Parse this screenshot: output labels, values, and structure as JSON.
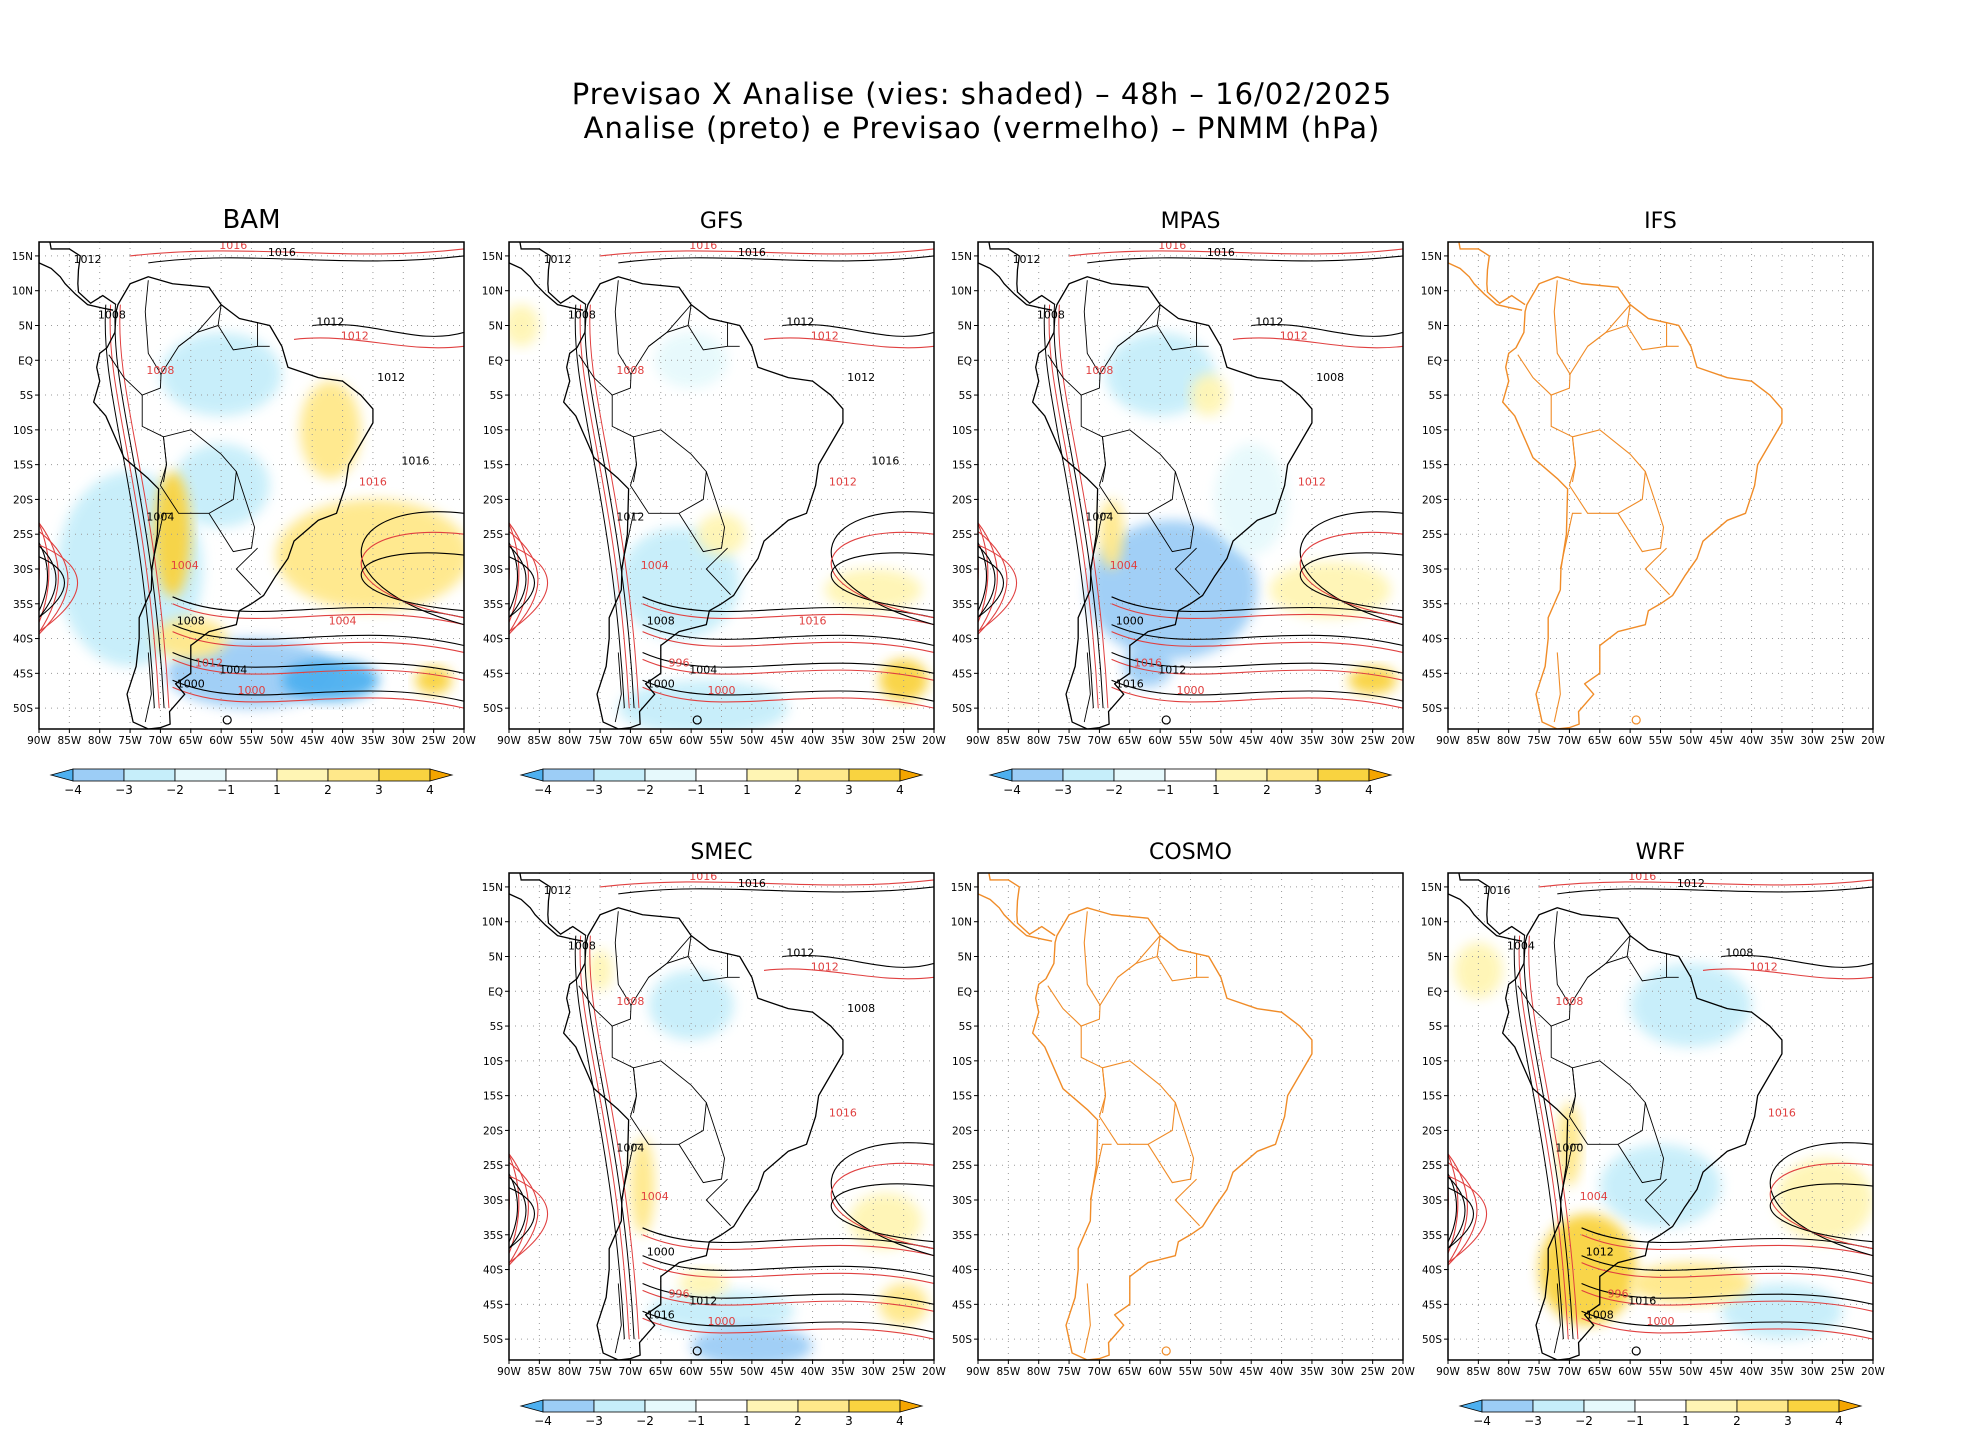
{
  "title": {
    "line1": "Previsao X Analise (vies: shaded) – 48h – 16/02/2025",
    "line2": "Analise (preto) e Previsao (vermelho) – PNMM (hPa)"
  },
  "colors": {
    "neg4": "#4db0f0",
    "neg3": "#9ccdf6",
    "neg2": "#c6eefa",
    "neg1": "#e6f9fc",
    "zero": "#ffffff",
    "pos1": "#fff5b4",
    "pos2": "#ffe88a",
    "pos3": "#f9d340",
    "pos4": "#f5a500",
    "analysis_contour": "#000000",
    "forecast_contour": "#e04040",
    "coast_outline": "#f08c28",
    "grid": "#9a9a9a"
  },
  "chart_data": {
    "type": "contour-map",
    "x_ticks": [
      "90W",
      "85W",
      "80W",
      "75W",
      "70W",
      "65W",
      "60W",
      "55W",
      "50W",
      "45W",
      "40W",
      "35W",
      "30W",
      "25W",
      "20W"
    ],
    "y_ticks": [
      "15N",
      "10N",
      "5N",
      "EQ",
      "5S",
      "10S",
      "15S",
      "20S",
      "25S",
      "30S",
      "35S",
      "40S",
      "45S",
      "50S"
    ],
    "lon_range": [
      -90,
      -20
    ],
    "lat_range": [
      -53,
      17
    ],
    "colorbar": {
      "labels": [
        "−4",
        "−3",
        "−2",
        "−1",
        "1",
        "2",
        "3",
        "4"
      ],
      "classes": [
        "neg4",
        "neg3",
        "neg2",
        "neg1",
        "zero",
        "pos1",
        "pos2",
        "pos3",
        "pos4"
      ]
    },
    "panels": [
      {
        "id": "bam",
        "name": "BAM",
        "has_data": true,
        "colorbar": true,
        "blobs": [
          {
            "lon": -55,
            "lat": -45,
            "rx": 14,
            "ry": 5,
            "v": -3
          },
          {
            "lon": -75,
            "lat": -30,
            "rx": 12,
            "ry": 14,
            "v": -2
          },
          {
            "lon": -42,
            "lat": -46,
            "rx": 8,
            "ry": 3,
            "v": -4
          },
          {
            "lon": -60,
            "lat": -2,
            "rx": 10,
            "ry": 6,
            "v": -2
          },
          {
            "lon": -60,
            "lat": -18,
            "rx": 8,
            "ry": 6,
            "v": -2
          },
          {
            "lon": -35,
            "lat": -28,
            "rx": 16,
            "ry": 8,
            "v": 2
          },
          {
            "lon": -68,
            "lat": -25,
            "rx": 3,
            "ry": 9,
            "v": 3
          },
          {
            "lon": -42,
            "lat": -10,
            "rx": 5,
            "ry": 7,
            "v": 2
          },
          {
            "lon": -65,
            "lat": -40,
            "rx": 6,
            "ry": 3,
            "v": 2
          },
          {
            "lon": -25,
            "lat": -46,
            "rx": 3,
            "ry": 2,
            "v": 3
          }
        ],
        "labels_black": [
          "1012",
          "1016",
          "1012",
          "1008",
          "1004",
          "1008",
          "1004",
          "1000",
          "1012",
          "1016"
        ],
        "labels_red": [
          "1016",
          "1012",
          "1008",
          "1004",
          "1000",
          "1012",
          "1016",
          "1004"
        ]
      },
      {
        "id": "gfs",
        "name": "GFS",
        "has_data": true,
        "colorbar": true,
        "blobs": [
          {
            "lon": -60,
            "lat": 0,
            "rx": 6,
            "ry": 4,
            "v": -1
          },
          {
            "lon": -62,
            "lat": -32,
            "rx": 10,
            "ry": 8,
            "v": -2
          },
          {
            "lon": -58,
            "lat": -50,
            "rx": 14,
            "ry": 4,
            "v": -2
          },
          {
            "lon": -88,
            "lat": 5,
            "rx": 3,
            "ry": 3,
            "v": 1
          },
          {
            "lon": -25,
            "lat": -46,
            "rx": 4,
            "ry": 3,
            "v": 3
          },
          {
            "lon": -30,
            "lat": -33,
            "rx": 8,
            "ry": 3,
            "v": 1
          },
          {
            "lon": -55,
            "lat": -25,
            "rx": 4,
            "ry": 3,
            "v": 1
          }
        ],
        "labels_black": [
          "1012",
          "1016",
          "1012",
          "1008",
          "1012",
          "1008",
          "1004",
          "1000",
          "1012",
          "1016"
        ],
        "labels_red": [
          "1016",
          "1012",
          "1008",
          "1004",
          "1000",
          "996",
          "1012",
          "1016"
        ]
      },
      {
        "id": "mpas",
        "name": "MPAS",
        "has_data": true,
        "colorbar": true,
        "blobs": [
          {
            "lon": -58,
            "lat": -33,
            "rx": 14,
            "ry": 10,
            "v": -3
          },
          {
            "lon": -60,
            "lat": -2,
            "rx": 9,
            "ry": 6,
            "v": -2
          },
          {
            "lon": -62,
            "lat": -44,
            "rx": 4,
            "ry": 3,
            "v": -3
          },
          {
            "lon": -45,
            "lat": -20,
            "rx": 6,
            "ry": 8,
            "v": -1
          },
          {
            "lon": -32,
            "lat": -33,
            "rx": 10,
            "ry": 4,
            "v": 1
          },
          {
            "lon": -25,
            "lat": -46,
            "rx": 4,
            "ry": 2,
            "v": 3
          },
          {
            "lon": -52,
            "lat": -5,
            "rx": 3,
            "ry": 3,
            "v": 1
          },
          {
            "lon": -68,
            "lat": -25,
            "rx": 2,
            "ry": 5,
            "v": 2
          }
        ],
        "labels_black": [
          "1012",
          "1016",
          "1012",
          "1008",
          "1004",
          "1000",
          "1012",
          "1016",
          "1008"
        ],
        "labels_red": [
          "1016",
          "1012",
          "1008",
          "1004",
          "1000",
          "1016",
          "1012"
        ]
      },
      {
        "id": "ifs",
        "name": "IFS",
        "has_data": false,
        "colorbar": false,
        "blobs": [],
        "labels_black": [],
        "labels_red": []
      },
      {
        "id": "smec",
        "name": "SMEC",
        "has_data": true,
        "colorbar": true,
        "blobs": [
          {
            "lon": -60,
            "lat": -2,
            "rx": 7,
            "ry": 5,
            "v": -2
          },
          {
            "lon": -55,
            "lat": -46,
            "rx": 12,
            "ry": 3,
            "v": -2
          },
          {
            "lon": -50,
            "lat": -51,
            "rx": 10,
            "ry": 3,
            "v": -3
          },
          {
            "lon": -68,
            "lat": -28,
            "rx": 2,
            "ry": 7,
            "v": 2
          },
          {
            "lon": -25,
            "lat": -45,
            "rx": 4,
            "ry": 3,
            "v": 2
          },
          {
            "lon": -28,
            "lat": -33,
            "rx": 6,
            "ry": 4,
            "v": 1
          },
          {
            "lon": -58,
            "lat": -42,
            "rx": 4,
            "ry": 2,
            "v": 1
          },
          {
            "lon": -75,
            "lat": 3,
            "rx": 2,
            "ry": 3,
            "v": 1
          }
        ],
        "labels_black": [
          "1012",
          "1016",
          "1012",
          "1008",
          "1004",
          "1000",
          "1012",
          "1016",
          "1008"
        ],
        "labels_red": [
          "1016",
          "1012",
          "1008",
          "1004",
          "1000",
          "996",
          "1016"
        ]
      },
      {
        "id": "cosmo",
        "name": "COSMO",
        "has_data": false,
        "colorbar": false,
        "blobs": [],
        "labels_black": [],
        "labels_red": []
      },
      {
        "id": "wrf",
        "name": "WRF",
        "has_data": true,
        "colorbar": true,
        "blobs": [
          {
            "lon": -50,
            "lat": -2,
            "rx": 10,
            "ry": 6,
            "v": -2
          },
          {
            "lon": -55,
            "lat": -28,
            "rx": 10,
            "ry": 6,
            "v": -2
          },
          {
            "lon": -35,
            "lat": -46,
            "rx": 10,
            "ry": 4,
            "v": -2
          },
          {
            "lon": -67,
            "lat": -40,
            "rx": 8,
            "ry": 8,
            "v": 3
          },
          {
            "lon": -50,
            "lat": -42,
            "rx": 10,
            "ry": 3,
            "v": 2
          },
          {
            "lon": -85,
            "lat": 3,
            "rx": 4,
            "ry": 4,
            "v": 1
          },
          {
            "lon": -28,
            "lat": -30,
            "rx": 8,
            "ry": 6,
            "v": 1
          },
          {
            "lon": -70,
            "lat": -22,
            "rx": 2,
            "ry": 6,
            "v": 2
          }
        ],
        "labels_black": [
          "1016",
          "1012",
          "1008",
          "1004",
          "1000",
          "1012",
          "1016",
          "1008"
        ],
        "labels_red": [
          "1016",
          "1012",
          "1008",
          "1004",
          "1000",
          "996",
          "1016"
        ]
      }
    ]
  }
}
